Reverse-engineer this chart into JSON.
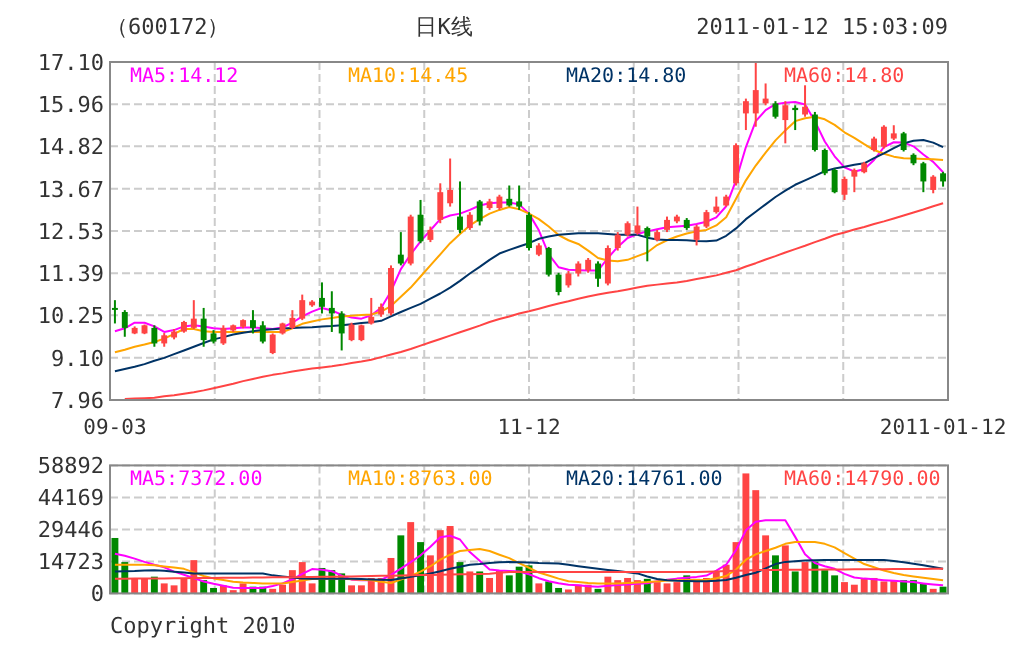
{
  "chart_data": [
    {
      "type": "candlestick",
      "title": "（600172）",
      "subtitle": "日K线",
      "annotations": [
        "2011-01-12 15:03:09"
      ],
      "categories": [
        "09-03",
        null,
        null,
        null,
        null,
        null,
        null,
        null,
        null,
        null,
        null,
        null,
        null,
        null,
        null,
        null,
        null,
        null,
        null,
        null,
        null,
        null,
        null,
        null,
        null,
        null,
        null,
        null,
        null,
        null,
        null,
        null,
        null,
        null,
        null,
        null,
        null,
        null,
        null,
        null,
        null,
        null,
        "11-12",
        null,
        null,
        null,
        null,
        null,
        null,
        null,
        null,
        null,
        null,
        null,
        null,
        null,
        null,
        null,
        null,
        null,
        null,
        null,
        null,
        null,
        null,
        null,
        null,
        null,
        null,
        null,
        null,
        null,
        null,
        null,
        null,
        null,
        null,
        null,
        null,
        null,
        null,
        null,
        null,
        null,
        "2011-01-12"
      ],
      "ohlc": [
        [
          10.45,
          10.66,
          10.03,
          10.42
        ],
        [
          10.34,
          10.39,
          9.67,
          9.91
        ],
        [
          9.76,
          9.95,
          9.74,
          9.91
        ],
        [
          9.76,
          10.0,
          9.74,
          9.98
        ],
        [
          9.91,
          9.98,
          9.4,
          9.49
        ],
        [
          9.49,
          9.77,
          9.4,
          9.71
        ],
        [
          9.65,
          9.88,
          9.6,
          9.81
        ],
        [
          9.81,
          10.1,
          9.78,
          10.07
        ],
        [
          9.91,
          10.66,
          9.88,
          10.16
        ],
        [
          10.16,
          10.45,
          9.4,
          9.58
        ],
        [
          9.76,
          9.85,
          9.49,
          9.54
        ],
        [
          9.49,
          9.98,
          9.45,
          9.91
        ],
        [
          9.84,
          10.0,
          9.8,
          9.98
        ],
        [
          9.94,
          10.14,
          9.9,
          10.12
        ],
        [
          10.12,
          10.39,
          9.76,
          9.91
        ],
        [
          9.98,
          10.09,
          9.49,
          9.54
        ],
        [
          9.23,
          9.76,
          9.2,
          9.73
        ],
        [
          9.76,
          10.05,
          9.73,
          10.03
        ],
        [
          9.91,
          10.39,
          9.88,
          10.18
        ],
        [
          10.16,
          10.81,
          10.12,
          10.66
        ],
        [
          10.52,
          10.66,
          10.48,
          10.62
        ],
        [
          10.72,
          11.14,
          10.3,
          10.48
        ],
        [
          10.45,
          10.9,
          9.8,
          10.3
        ],
        [
          10.3,
          10.36,
          9.3,
          9.76
        ],
        [
          9.58,
          10.05,
          9.55,
          10.0
        ],
        [
          9.58,
          10.0,
          9.55,
          9.98
        ],
        [
          10.03,
          10.72,
          10.0,
          10.21
        ],
        [
          10.27,
          10.57,
          10.21,
          10.48
        ],
        [
          10.3,
          11.6,
          10.25,
          11.53
        ],
        [
          11.89,
          12.5,
          11.6,
          11.65
        ],
        [
          11.65,
          12.97,
          11.6,
          12.92
        ],
        [
          12.97,
          13.37,
          12.2,
          12.25
        ],
        [
          12.29,
          12.65,
          12.23,
          12.56
        ],
        [
          12.83,
          13.82,
          12.74,
          13.58
        ],
        [
          13.28,
          14.49,
          13.19,
          13.64
        ],
        [
          12.92,
          13.87,
          12.47,
          12.56
        ],
        [
          12.61,
          13.04,
          12.56,
          12.97
        ],
        [
          13.33,
          13.37,
          12.68,
          12.79
        ],
        [
          13.15,
          13.4,
          13.1,
          13.33
        ],
        [
          13.15,
          13.51,
          13.1,
          13.46
        ],
        [
          13.4,
          13.76,
          13.19,
          13.22
        ],
        [
          13.33,
          13.76,
          13.1,
          13.19
        ],
        [
          12.97,
          13.04,
          12.0,
          12.07
        ],
        [
          11.89,
          12.2,
          11.85,
          12.14
        ],
        [
          12.07,
          12.1,
          11.3,
          11.35
        ],
        [
          11.35,
          11.4,
          10.79,
          10.88
        ],
        [
          11.06,
          11.45,
          11.0,
          11.38
        ],
        [
          11.38,
          11.71,
          11.3,
          11.65
        ],
        [
          11.47,
          11.8,
          11.4,
          11.75
        ],
        [
          11.65,
          11.71,
          11.02,
          11.24
        ],
        [
          11.11,
          12.14,
          11.06,
          12.07
        ],
        [
          12.07,
          12.5,
          12.0,
          12.43
        ],
        [
          12.43,
          12.79,
          12.38,
          12.74
        ],
        [
          12.47,
          13.19,
          12.43,
          12.68
        ],
        [
          12.61,
          12.65,
          11.71,
          12.38
        ],
        [
          12.29,
          12.56,
          12.25,
          12.5
        ],
        [
          12.56,
          12.92,
          12.5,
          12.83
        ],
        [
          12.79,
          12.97,
          12.74,
          12.92
        ],
        [
          12.83,
          12.88,
          12.56,
          12.61
        ],
        [
          12.29,
          12.7,
          12.14,
          12.65
        ],
        [
          12.65,
          13.1,
          12.61,
          13.04
        ],
        [
          13.04,
          13.46,
          13.0,
          13.19
        ],
        [
          13.22,
          13.51,
          13.19,
          13.46
        ],
        [
          13.82,
          14.9,
          13.76,
          14.85
        ],
        [
          15.71,
          16.11,
          15.26,
          16.04
        ],
        [
          15.71,
          17.1,
          15.35,
          16.34
        ],
        [
          15.98,
          16.52,
          15.93,
          16.11
        ],
        [
          15.98,
          16.04,
          15.57,
          15.62
        ],
        [
          15.53,
          16.04,
          14.9,
          15.93
        ],
        [
          15.86,
          15.93,
          15.26,
          15.8
        ],
        [
          15.68,
          16.47,
          15.62,
          15.89
        ],
        [
          15.68,
          15.75,
          14.68,
          14.72
        ],
        [
          14.72,
          14.76,
          14.04,
          14.09
        ],
        [
          14.18,
          14.22,
          13.55,
          13.58
        ],
        [
          13.51,
          14.0,
          13.37,
          13.94
        ],
        [
          14.0,
          14.22,
          13.58,
          14.18
        ],
        [
          14.12,
          14.4,
          14.09,
          14.36
        ],
        [
          14.72,
          15.08,
          14.68,
          15.03
        ],
        [
          14.81,
          15.39,
          14.76,
          15.35
        ],
        [
          15.03,
          15.39,
          14.99,
          15.17
        ],
        [
          15.17,
          15.21,
          14.68,
          14.72
        ],
        [
          14.59,
          14.63,
          14.31,
          14.36
        ],
        [
          14.36,
          14.4,
          13.58,
          13.87
        ],
        [
          13.64,
          14.04,
          13.55,
          14.0
        ],
        [
          14.09,
          14.13,
          13.73,
          13.87
        ]
      ],
      "colors": [
        "#008800",
        "#008800",
        "#ff4444",
        "#ff4444",
        "#008800",
        "#ff4444",
        "#ff4444",
        "#ff4444",
        "#ff4444",
        "#008800",
        "#008800",
        "#ff4444",
        "#ff4444",
        "#ff4444",
        "#008800",
        "#008800",
        "#ff4444",
        "#ff4444",
        "#ff4444",
        "#ff4444",
        "#ff4444",
        "#008800",
        "#008800",
        "#008800",
        "#ff4444",
        "#ff4444",
        "#ff4444",
        "#ff4444",
        "#ff4444",
        "#008800",
        "#ff4444",
        "#008800",
        "#ff4444",
        "#ff4444",
        "#ff4444",
        "#008800",
        "#ff4444",
        "#008800",
        "#ff4444",
        "#ff4444",
        "#008800",
        "#008800",
        "#008800",
        "#ff4444",
        "#008800",
        "#008800",
        "#ff4444",
        "#ff4444",
        "#ff4444",
        "#008800",
        "#ff4444",
        "#ff4444",
        "#ff4444",
        "#ff4444",
        "#008800",
        "#ff4444",
        "#ff4444",
        "#ff4444",
        "#008800",
        "#ff4444",
        "#ff4444",
        "#ff4444",
        "#ff4444",
        "#ff4444",
        "#ff4444",
        "#ff4444",
        "#ff4444",
        "#008800",
        "#ff4444",
        "#008800",
        "#ff4444",
        "#008800",
        "#008800",
        "#008800",
        "#ff4444",
        "#ff4444",
        "#ff4444",
        "#ff4444",
        "#ff4444",
        "#ff4444",
        "#008800",
        "#008800",
        "#008800",
        "#ff4444",
        "#008800"
      ],
      "ylim": [
        7.96,
        17.1
      ],
      "yticks": [
        7.96,
        {
          "value": 9.1,
          "label": "9.10"
        },
        10.25,
        11.39,
        12.53,
        13.67,
        14.82,
        15.96,
        {
          "value": 17.1,
          "label": "17.10"
        }
      ],
      "grid": true,
      "legend": "top",
      "series": [
        {
          "type": "line",
          "name": "MA5:14.12",
          "color": "#ff00ff",
          "values": [
            9.82,
            9.9,
            10.05,
            10.05,
            9.95,
            9.8,
            9.85,
            9.95,
            9.98,
            9.95,
            9.9,
            9.88,
            9.9,
            9.92,
            9.92,
            9.9,
            9.88,
            9.92,
            10.05,
            10.22,
            10.35,
            10.45,
            10.38,
            10.27,
            10.19,
            10.16,
            10.25,
            10.45,
            10.9,
            11.5,
            11.9,
            12.25,
            12.55,
            12.85,
            12.95,
            13.0,
            13.1,
            13.22,
            13.28,
            13.3,
            13.3,
            13.25,
            13.0,
            12.55,
            11.9,
            11.55,
            11.48,
            11.47,
            11.46,
            11.46,
            11.8,
            12.1,
            12.34,
            12.45,
            12.52,
            12.58,
            12.63,
            12.65,
            12.67,
            12.72,
            12.78,
            12.9,
            13.2,
            13.9,
            14.8,
            15.5,
            15.8,
            15.96,
            16.0,
            16.02,
            15.95,
            15.5,
            14.95,
            14.55,
            14.25,
            14.14,
            14.2,
            14.45,
            14.8,
            14.93,
            14.92,
            14.82,
            14.6,
            14.4,
            14.12
          ]
        },
        {
          "type": "line",
          "name": "MA10:14.45",
          "color": "#ffa500",
          "values": [
            9.25,
            9.32,
            9.4,
            9.46,
            9.53,
            9.62,
            9.75,
            9.88,
            9.88,
            9.82,
            9.8,
            9.8,
            9.8,
            9.8,
            9.8,
            9.8,
            9.8,
            9.8,
            9.9,
            10.02,
            10.08,
            10.14,
            10.18,
            10.22,
            10.24,
            10.26,
            10.27,
            10.35,
            10.5,
            10.75,
            11.0,
            11.3,
            11.6,
            11.9,
            12.2,
            12.45,
            12.68,
            12.85,
            13.0,
            13.1,
            13.18,
            13.12,
            13.0,
            12.85,
            12.65,
            12.42,
            12.28,
            12.18,
            12.0,
            11.8,
            11.73,
            11.71,
            11.75,
            11.85,
            11.95,
            12.15,
            12.28,
            12.38,
            12.46,
            12.52,
            12.56,
            12.68,
            12.9,
            13.4,
            13.9,
            14.3,
            14.65,
            14.98,
            15.25,
            15.5,
            15.58,
            15.62,
            15.55,
            15.4,
            15.2,
            15.05,
            14.88,
            14.72,
            14.62,
            14.54,
            14.5,
            14.49,
            14.48,
            14.47,
            14.45
          ]
        },
        {
          "type": "line",
          "name": "MA20:14.80",
          "color": "#003366",
          "values": [
            8.74,
            8.8,
            8.86,
            8.93,
            9.02,
            9.1,
            9.2,
            9.3,
            9.4,
            9.5,
            9.6,
            9.66,
            9.73,
            9.78,
            9.82,
            9.85,
            9.87,
            9.89,
            9.91,
            9.92,
            9.93,
            9.95,
            9.96,
            9.98,
            10.01,
            10.04,
            10.06,
            10.1,
            10.22,
            10.34,
            10.45,
            10.56,
            10.7,
            10.84,
            11.0,
            11.18,
            11.38,
            11.56,
            11.75,
            11.92,
            12.02,
            12.11,
            12.2,
            12.32,
            12.38,
            12.43,
            12.45,
            12.47,
            12.47,
            12.47,
            12.45,
            12.43,
            12.43,
            12.43,
            12.35,
            12.3,
            12.29,
            12.29,
            12.28,
            12.26,
            12.25,
            12.27,
            12.4,
            12.6,
            12.85,
            13.05,
            13.25,
            13.45,
            13.62,
            13.78,
            13.9,
            14.02,
            14.15,
            14.22,
            14.27,
            14.32,
            14.36,
            14.5,
            14.63,
            14.77,
            14.9,
            14.97,
            14.99,
            14.92,
            14.8
          ]
        },
        {
          "type": "line",
          "name": "MA60:14.80",
          "color": "#ff4444",
          "values": [
            null,
            7.99,
            8.0,
            8.01,
            8.02,
            8.06,
            8.09,
            8.13,
            8.17,
            8.22,
            8.28,
            8.34,
            8.4,
            8.47,
            8.53,
            8.59,
            8.64,
            8.68,
            8.73,
            8.77,
            8.81,
            8.84,
            8.87,
            8.91,
            8.96,
            9.0,
            9.05,
            9.12,
            9.19,
            9.26,
            9.34,
            9.43,
            9.52,
            9.61,
            9.7,
            9.79,
            9.88,
            9.97,
            10.07,
            10.15,
            10.22,
            10.3,
            10.36,
            10.43,
            10.5,
            10.57,
            10.63,
            10.7,
            10.76,
            10.81,
            10.86,
            10.9,
            10.95,
            11.0,
            11.05,
            11.08,
            11.11,
            11.14,
            11.18,
            11.23,
            11.28,
            11.33,
            11.4,
            11.47,
            11.57,
            11.66,
            11.76,
            11.85,
            11.95,
            12.04,
            12.13,
            12.23,
            12.32,
            12.42,
            12.49,
            12.57,
            12.64,
            12.72,
            12.79,
            12.87,
            12.95,
            13.03,
            13.11,
            13.2,
            13.28
          ]
        }
      ]
    },
    {
      "type": "bar",
      "annotations": [
        "Copyright 2010"
      ],
      "categories": [
        null,
        null,
        null,
        null,
        null,
        null,
        null,
        null,
        null,
        null,
        null,
        null,
        null,
        null,
        null,
        null,
        null,
        null,
        null,
        null,
        null,
        null,
        null,
        null,
        null,
        null,
        null,
        null,
        null,
        null,
        null,
        null,
        null,
        null,
        null,
        null,
        null,
        null,
        null,
        null,
        null,
        null,
        null,
        null,
        null,
        null,
        null,
        null,
        null,
        null,
        null,
        null,
        null,
        null,
        null,
        null,
        null,
        null,
        null,
        null,
        null,
        null,
        null,
        null,
        null,
        null,
        null,
        null,
        null,
        null,
        null,
        null,
        null,
        null,
        null,
        null,
        null,
        null,
        null,
        null,
        null,
        null,
        null,
        null,
        null
      ],
      "tick_labels": "y",
      "ylim": [
        0,
        58892
      ],
      "yticks": [
        0,
        14723,
        29446,
        44169,
        58892
      ],
      "grid": true,
      "legend": "top",
      "series": [
        {
          "type": "bar",
          "values": [
            25500,
            14400,
            6700,
            6700,
            7700,
            4600,
            3700,
            7100,
            15300,
            6100,
            2500,
            3700,
            1500,
            4600,
            3100,
            3100,
            2100,
            4000,
            10700,
            14400,
            4600,
            11700,
            10700,
            9200,
            3700,
            3700,
            7100,
            7100,
            16300,
            26700,
            32800,
            23600,
            17500,
            29100,
            31000,
            14400,
            10100,
            10100,
            7100,
            10700,
            8300,
            12300,
            12900,
            4600,
            5500,
            2500,
            1800,
            4000,
            4000,
            2100,
            7700,
            6100,
            7100,
            6100,
            6700,
            5200,
            4600,
            5200,
            8300,
            6700,
            7100,
            10100,
            13200,
            23600,
            55200,
            47500,
            26700,
            17500,
            22100,
            10100,
            14400,
            14700,
            10700,
            8300,
            5200,
            4000,
            7100,
            7100,
            5500,
            6100,
            6100,
            6100,
            4600,
            2100,
            3100
          ],
          "colors": [
            "#008800",
            "#008800",
            "#ff4444",
            "#ff4444",
            "#008800",
            "#ff4444",
            "#ff4444",
            "#ff4444",
            "#ff4444",
            "#008800",
            "#008800",
            "#ff4444",
            "#ff4444",
            "#ff4444",
            "#008800",
            "#008800",
            "#ff4444",
            "#ff4444",
            "#ff4444",
            "#ff4444",
            "#ff4444",
            "#008800",
            "#008800",
            "#008800",
            "#ff4444",
            "#ff4444",
            "#ff4444",
            "#ff4444",
            "#ff4444",
            "#008800",
            "#ff4444",
            "#008800",
            "#ff4444",
            "#ff4444",
            "#ff4444",
            "#008800",
            "#ff4444",
            "#008800",
            "#ff4444",
            "#ff4444",
            "#008800",
            "#008800",
            "#008800",
            "#ff4444",
            "#008800",
            "#008800",
            "#ff4444",
            "#ff4444",
            "#ff4444",
            "#008800",
            "#ff4444",
            "#ff4444",
            "#ff4444",
            "#ff4444",
            "#008800",
            "#ff4444",
            "#ff4444",
            "#ff4444",
            "#008800",
            "#ff4444",
            "#ff4444",
            "#ff4444",
            "#ff4444",
            "#ff4444",
            "#ff4444",
            "#ff4444",
            "#ff4444",
            "#008800",
            "#ff4444",
            "#008800",
            "#ff4444",
            "#008800",
            "#008800",
            "#008800",
            "#ff4444",
            "#ff4444",
            "#ff4444",
            "#ff4444",
            "#ff4444",
            "#ff4444",
            "#008800",
            "#008800",
            "#008800",
            "#ff4444",
            "#008800"
          ]
        },
        {
          "type": "line",
          "name": "MA5:7372.00",
          "color": "#ff00ff",
          "values": [
            18200,
            17300,
            16000,
            14500,
            13200,
            12000,
            10000,
            8600,
            7000,
            5500,
            4400,
            3500,
            2600,
            2450,
            2450,
            2450,
            3400,
            4600,
            6500,
            9000,
            11200,
            10900,
            10200,
            8200,
            6300,
            6100,
            6100,
            6200,
            8500,
            11400,
            14400,
            17500,
            21500,
            25800,
            26500,
            24800,
            19000,
            15000,
            11000,
            10500,
            10300,
            10100,
            8800,
            7000,
            5600,
            4700,
            4000,
            3700,
            3300,
            3100,
            3500,
            3900,
            4100,
            4400,
            4700,
            5600,
            6300,
            6800,
            7200,
            7600,
            8200,
            10500,
            13200,
            20000,
            29000,
            33000,
            33700,
            33700,
            33700,
            26000,
            18000,
            14000,
            12500,
            11300,
            9000,
            7300,
            6800,
            6500,
            6100,
            5800,
            5500,
            5200,
            4600,
            4100,
            3700
          ]
        },
        {
          "type": "line",
          "name": "MA10:8763.00",
          "color": "#ffa500",
          "values": [
            13200,
            13200,
            13200,
            13200,
            12900,
            12400,
            11900,
            11300,
            9700,
            8000,
            6900,
            6200,
            5400,
            5000,
            4800,
            4600,
            4600,
            4600,
            5200,
            5900,
            6600,
            6750,
            6750,
            6750,
            6500,
            6300,
            6100,
            5400,
            4800,
            6400,
            8000,
            10000,
            12500,
            15500,
            17800,
            19500,
            20000,
            20400,
            19500,
            17800,
            16200,
            13900,
            11800,
            9600,
            8200,
            6800,
            5600,
            5200,
            4800,
            4600,
            4600,
            4600,
            4800,
            5000,
            5200,
            5500,
            5900,
            6100,
            6130,
            6130,
            6130,
            7000,
            8000,
            11000,
            15500,
            18000,
            19500,
            21000,
            22800,
            23600,
            23600,
            23600,
            22800,
            21200,
            18500,
            16000,
            13500,
            12000,
            10500,
            9400,
            8500,
            7800,
            7200,
            6600,
            6100
          ]
        },
        {
          "type": "line",
          "name": "MA20:14761.00",
          "color": "#003366",
          "values": [
            10100,
            10200,
            10300,
            10500,
            10700,
            10400,
            10000,
            9600,
            9200,
            9200,
            9200,
            9200,
            9200,
            9200,
            9200,
            9200,
            8300,
            7800,
            7300,
            6800,
            6750,
            6750,
            6750,
            6750,
            6750,
            6600,
            6450,
            6300,
            6130,
            6900,
            7600,
            8300,
            9200,
            10200,
            11300,
            12300,
            13190,
            13500,
            14000,
            14300,
            14400,
            14300,
            14200,
            14000,
            13900,
            13800,
            13200,
            12500,
            11900,
            11350,
            10800,
            10300,
            9700,
            9200,
            7800,
            6600,
            6000,
            5800,
            5700,
            5550,
            5600,
            5800,
            6130,
            7200,
            8500,
            9500,
            11500,
            13500,
            14500,
            14800,
            15100,
            15300,
            15340,
            15340,
            15340,
            15340,
            15340,
            15340,
            15340,
            14900,
            14300,
            13600,
            12900,
            12100,
            11350
          ]
        },
        {
          "type": "line",
          "name": "MA60:14790.00",
          "color": "#ff4444",
          "values": [
            6750,
            6780,
            6800,
            6830,
            6860,
            6900,
            6950,
            7000,
            7050,
            7090,
            7130,
            7170,
            7210,
            7250,
            7300,
            7340,
            7380,
            7420,
            7460,
            7500,
            7550,
            7610,
            7670,
            7750,
            7830,
            7920,
            8000,
            8080,
            8170,
            8250,
            8340,
            8420,
            8500,
            8590,
            8670,
            8760,
            8840,
            8930,
            9010,
            9500,
            9810,
            9810,
            9810,
            9810,
            9810,
            9810,
            9810,
            9810,
            9810,
            9810,
            9810,
            9810,
            9810,
            9810,
            9810,
            9810,
            9810,
            9810,
            9810,
            9810,
            9960,
            10110,
            10270,
            10430,
            10590,
            10740,
            10770,
            10800,
            10830,
            10860,
            10890,
            10920,
            10960,
            10990,
            11020,
            11060,
            11090,
            11120,
            11150,
            11190,
            11220,
            11250,
            11280,
            11320,
            11350
          ]
        }
      ]
    }
  ]
}
